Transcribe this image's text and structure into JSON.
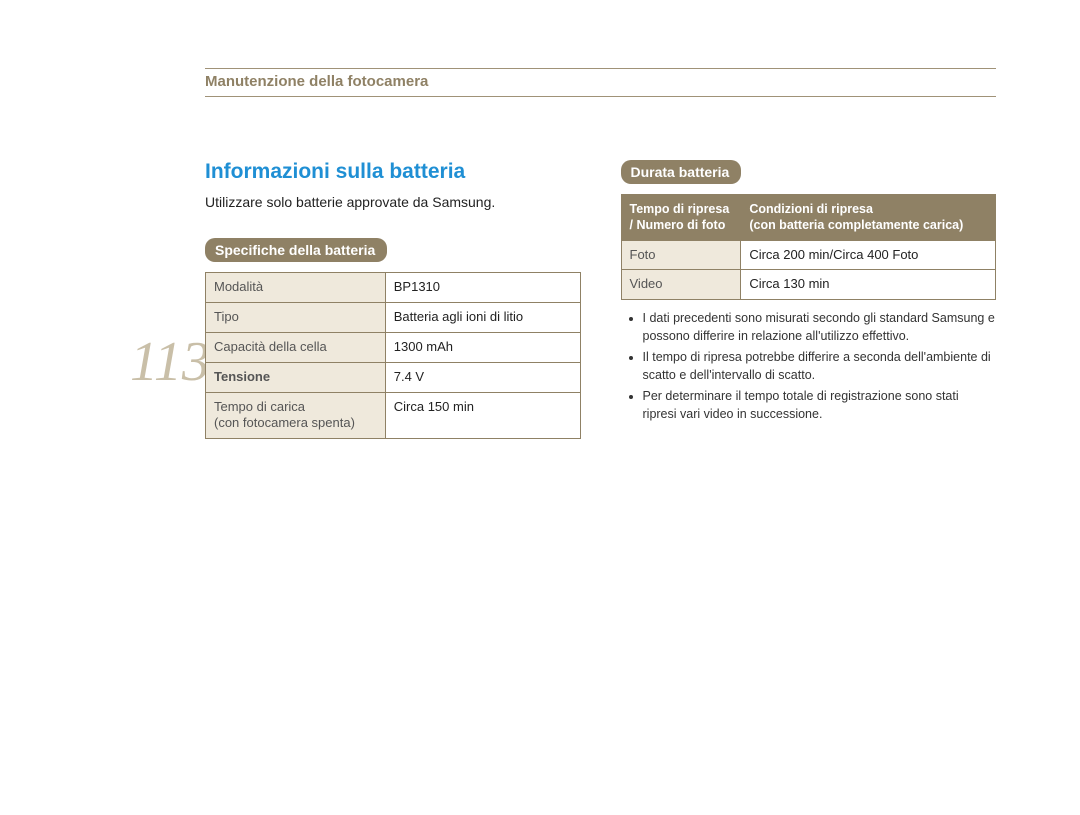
{
  "page_number": "113",
  "section_title": "Manutenzione della fotocamera",
  "heading": "Informazioni sulla batteria",
  "intro": "Utilizzare solo batterie approvate da Samsung.",
  "spec": {
    "pill": "Specifiche della batteria",
    "rows": [
      {
        "label": "Modalità",
        "value": "BP1310",
        "label_bold": false
      },
      {
        "label": "Tipo",
        "value": "Batteria agli ioni di litio",
        "label_bold": false
      },
      {
        "label": "Capacità della cella",
        "value": "1300 mAh",
        "label_bold": false
      },
      {
        "label": "Tensione",
        "value": "7.4 V",
        "label_bold": true
      },
      {
        "label": "Tempo di carica\n(con fotocamera spenta)",
        "value": "Circa 150 min",
        "label_bold": false
      }
    ]
  },
  "duration": {
    "pill": "Durata batteria",
    "header_left": "Tempo di ripresa / Numero di foto",
    "header_right": "Condizioni di ripresa\n(con batteria completamente carica)",
    "rows": [
      {
        "label": "Foto",
        "value": "Circa 200 min/Circa 400 Foto"
      },
      {
        "label": "Video",
        "value": "Circa 130 min"
      }
    ],
    "notes": [
      "I dati precedenti sono misurati secondo gli standard Samsung e possono differire in relazione all'utilizzo effettivo.",
      "Il tempo di ripresa potrebbe differire a seconda dell'ambiente di scatto e dell'intervallo di scatto.",
      "Per determinare il tempo totale di registrazione sono stati ripresi vari video in successione."
    ]
  },
  "colors": {
    "accent": "#8f8165",
    "heading": "#1f8fd4",
    "label_bg": "#efe9dc",
    "pagenum": "#c9bfa8"
  }
}
